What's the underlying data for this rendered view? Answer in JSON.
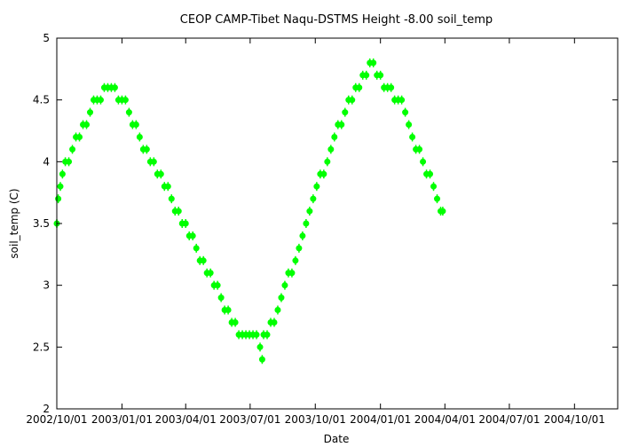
{
  "chart_data": {
    "type": "scatter",
    "title": "CEOP CAMP-Tibet Naqu-DSTMS Height -8.00 soil_temp",
    "xlabel": "Date",
    "ylabel": "soil_temp (C)",
    "xlim": [
      "2002/10/01",
      "2004/12/01"
    ],
    "ylim": [
      2,
      5
    ],
    "x_ticks": [
      "2002/10/01",
      "2003/01/01",
      "2003/04/01",
      "2003/07/01",
      "2003/10/01",
      "2004/01/01",
      "2004/04/01",
      "2004/07/01",
      "2004/10/01"
    ],
    "y_ticks": [
      "2",
      "2.5",
      "3",
      "3.5",
      "4",
      "4.5",
      "5"
    ],
    "grid": false,
    "series_color": "#00ff00",
    "series": [
      {
        "points": [
          [
            "2002/10/01",
            3.5
          ],
          [
            "2002/10/03",
            3.7
          ],
          [
            "2002/10/06",
            3.8
          ],
          [
            "2002/10/09",
            3.9
          ],
          [
            "2002/10/13",
            4.0
          ],
          [
            "2002/10/18",
            4.0
          ],
          [
            "2002/10/23",
            4.1
          ],
          [
            "2002/10/28",
            4.2
          ],
          [
            "2002/11/02",
            4.2
          ],
          [
            "2002/11/07",
            4.3
          ],
          [
            "2002/11/12",
            4.3
          ],
          [
            "2002/11/17",
            4.4
          ],
          [
            "2002/11/22",
            4.5
          ],
          [
            "2002/11/27",
            4.5
          ],
          [
            "2002/12/02",
            4.5
          ],
          [
            "2002/12/07",
            4.6
          ],
          [
            "2002/12/12",
            4.6
          ],
          [
            "2002/12/17",
            4.6
          ],
          [
            "2002/12/22",
            4.6
          ],
          [
            "2002/12/27",
            4.5
          ],
          [
            "2003/01/01",
            4.5
          ],
          [
            "2003/01/06",
            4.5
          ],
          [
            "2003/01/11",
            4.4
          ],
          [
            "2003/01/16",
            4.3
          ],
          [
            "2003/01/21",
            4.3
          ],
          [
            "2003/01/26",
            4.2
          ],
          [
            "2003/01/31",
            4.1
          ],
          [
            "2003/02/05",
            4.1
          ],
          [
            "2003/02/10",
            4.0
          ],
          [
            "2003/02/15",
            4.0
          ],
          [
            "2003/02/20",
            3.9
          ],
          [
            "2003/02/25",
            3.9
          ],
          [
            "2003/03/02",
            3.8
          ],
          [
            "2003/03/07",
            3.8
          ],
          [
            "2003/03/12",
            3.7
          ],
          [
            "2003/03/17",
            3.6
          ],
          [
            "2003/03/22",
            3.6
          ],
          [
            "2003/03/27",
            3.5
          ],
          [
            "2003/04/01",
            3.5
          ],
          [
            "2003/04/06",
            3.4
          ],
          [
            "2003/04/11",
            3.4
          ],
          [
            "2003/04/16",
            3.3
          ],
          [
            "2003/04/21",
            3.2
          ],
          [
            "2003/04/26",
            3.2
          ],
          [
            "2003/05/01",
            3.1
          ],
          [
            "2003/05/06",
            3.1
          ],
          [
            "2003/05/11",
            3.0
          ],
          [
            "2003/05/16",
            3.0
          ],
          [
            "2003/05/21",
            2.9
          ],
          [
            "2003/05/26",
            2.8
          ],
          [
            "2003/05/31",
            2.8
          ],
          [
            "2003/06/05",
            2.7
          ],
          [
            "2003/06/10",
            2.7
          ],
          [
            "2003/06/15",
            2.6
          ],
          [
            "2003/06/20",
            2.6
          ],
          [
            "2003/06/25",
            2.6
          ],
          [
            "2003/06/30",
            2.6
          ],
          [
            "2003/07/05",
            2.6
          ],
          [
            "2003/07/10",
            2.6
          ],
          [
            "2003/07/15",
            2.5
          ],
          [
            "2003/07/18",
            2.4
          ],
          [
            "2003/07/20",
            2.6
          ],
          [
            "2003/07/25",
            2.6
          ],
          [
            "2003/07/30",
            2.7
          ],
          [
            "2003/08/04",
            2.7
          ],
          [
            "2003/08/09",
            2.8
          ],
          [
            "2003/08/14",
            2.9
          ],
          [
            "2003/08/19",
            3.0
          ],
          [
            "2003/08/24",
            3.1
          ],
          [
            "2003/08/29",
            3.1
          ],
          [
            "2003/09/03",
            3.2
          ],
          [
            "2003/09/08",
            3.3
          ],
          [
            "2003/09/13",
            3.4
          ],
          [
            "2003/09/18",
            3.5
          ],
          [
            "2003/09/23",
            3.6
          ],
          [
            "2003/09/28",
            3.7
          ],
          [
            "2003/10/03",
            3.8
          ],
          [
            "2003/10/08",
            3.9
          ],
          [
            "2003/10/13",
            3.9
          ],
          [
            "2003/10/18",
            4.0
          ],
          [
            "2003/10/23",
            4.1
          ],
          [
            "2003/10/28",
            4.2
          ],
          [
            "2003/11/02",
            4.3
          ],
          [
            "2003/11/07",
            4.3
          ],
          [
            "2003/11/12",
            4.4
          ],
          [
            "2003/11/17",
            4.5
          ],
          [
            "2003/11/22",
            4.5
          ],
          [
            "2003/11/27",
            4.6
          ],
          [
            "2003/12/02",
            4.6
          ],
          [
            "2003/12/07",
            4.7
          ],
          [
            "2003/12/12",
            4.7
          ],
          [
            "2003/12/17",
            4.8
          ],
          [
            "2003/12/22",
            4.8
          ],
          [
            "2003/12/27",
            4.7
          ],
          [
            "2004/01/01",
            4.7
          ],
          [
            "2004/01/06",
            4.6
          ],
          [
            "2004/01/11",
            4.6
          ],
          [
            "2004/01/16",
            4.6
          ],
          [
            "2004/01/21",
            4.5
          ],
          [
            "2004/01/26",
            4.5
          ],
          [
            "2004/01/31",
            4.5
          ],
          [
            "2004/02/05",
            4.4
          ],
          [
            "2004/02/10",
            4.3
          ],
          [
            "2004/02/15",
            4.2
          ],
          [
            "2004/02/20",
            4.1
          ],
          [
            "2004/02/25",
            4.1
          ],
          [
            "2004/03/01",
            4.0
          ],
          [
            "2004/03/06",
            3.9
          ],
          [
            "2004/03/11",
            3.9
          ],
          [
            "2004/03/16",
            3.8
          ],
          [
            "2004/03/21",
            3.7
          ],
          [
            "2004/03/26",
            3.6
          ],
          [
            "2004/03/29",
            3.6
          ]
        ]
      }
    ]
  }
}
